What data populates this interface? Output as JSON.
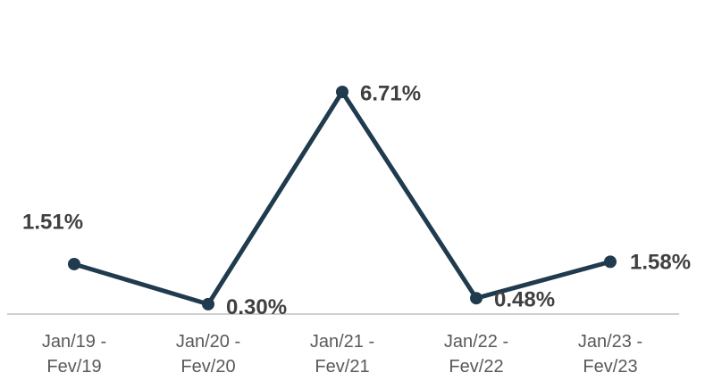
{
  "chart_data": {
    "type": "line",
    "categories": [
      "Jan/19 - Fev/19",
      "Jan/20 - Fev/20",
      "Jan/21 - Fev/21",
      "Jan/22 - Fev/22",
      "Jan/23 - Fev/23"
    ],
    "series": [
      {
        "color": "#1f3b4d",
        "values": [
          1.51,
          0.3,
          6.71,
          0.48,
          1.58
        ],
        "value_labels": [
          "1.51%",
          "0.30%",
          "6.71%",
          "0.48%",
          "1.58%"
        ]
      }
    ]
  }
}
